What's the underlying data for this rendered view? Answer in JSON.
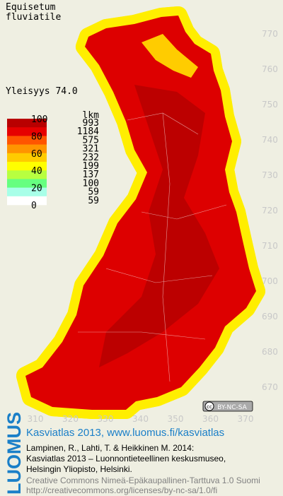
{
  "header": {
    "title_lines": [
      "Equisetum",
      "fluviatile"
    ],
    "frequency": "Yleisyys 74.0"
  },
  "legend": {
    "count_header": "lkm",
    "scale_labels": [
      "100",
      "80",
      "60",
      "40",
      "20",
      "0"
    ],
    "counts": [
      "993",
      "1184",
      "575",
      "321",
      "232",
      "199",
      "137",
      "100",
      "59",
      "59"
    ],
    "colors": [
      "#b80000",
      "#e60000",
      "#ff5500",
      "#ff9500",
      "#ffcc00",
      "#ffff00",
      "#b8ff40",
      "#66ff80",
      "#a8ffe8",
      "#ffffff"
    ]
  },
  "axes": {
    "y_labels": [
      "770",
      "760",
      "750",
      "740",
      "730",
      "720",
      "710",
      "700",
      "690",
      "680",
      "670"
    ],
    "x_labels": [
      "310",
      "320",
      "330",
      "340",
      "350",
      "360",
      "370"
    ]
  },
  "badge": {
    "cc": "cc",
    "license": "BY-NC-SA"
  },
  "footer": {
    "logo": "LUOMUS",
    "link": "Kasviatlas 2013, www.luomus.fi/kasviatlas",
    "citation": [
      "Lampinen, R., Lahti, T. & Heikkinen M. 2014:",
      "Kasviatlas 2013 – Luonnontieteellinen keskusmuseo,",
      "Helsingin Yliopisto, Helsinki."
    ],
    "license": [
      "Creative Commons Nimeä-Epäkaupallinen-Tarttuva 1.0 Suomi",
      "http://creativecommons.org/licenses/by-nc-sa/1.0/fi"
    ]
  }
}
